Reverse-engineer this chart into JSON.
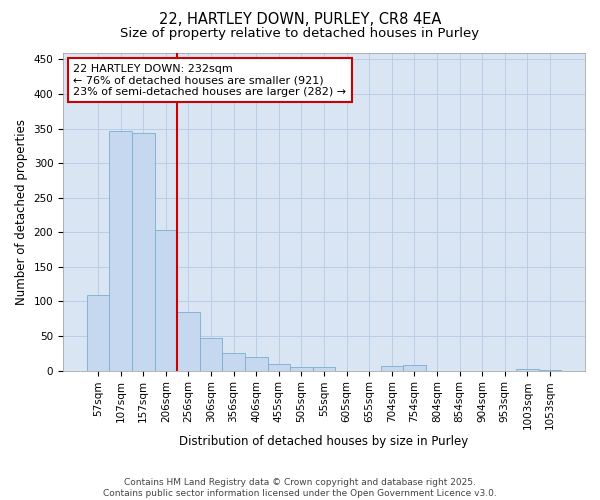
{
  "title1": "22, HARTLEY DOWN, PURLEY, CR8 4EA",
  "title2": "Size of property relative to detached houses in Purley",
  "xlabel": "Distribution of detached houses by size in Purley",
  "ylabel": "Number of detached properties",
  "categories": [
    "57sqm",
    "107sqm",
    "157sqm",
    "206sqm",
    "256sqm",
    "306sqm",
    "356sqm",
    "406sqm",
    "455sqm",
    "505sqm",
    "55sqm",
    "605sqm",
    "655sqm",
    "704sqm",
    "754sqm",
    "804sqm",
    "854sqm",
    "904sqm",
    "953sqm",
    "1003sqm",
    "1053sqm"
  ],
  "values": [
    110,
    347,
    343,
    203,
    85,
    47,
    25,
    20,
    10,
    5,
    5,
    0,
    0,
    7,
    8,
    0,
    0,
    0,
    0,
    2,
    1
  ],
  "bar_color": "#c5d8f0",
  "bar_edge_color": "#7aaed4",
  "grid_color": "#b8cde6",
  "background_color": "#dae5f4",
  "annotation_box_color": "#cc0000",
  "annotation_text": "22 HARTLEY DOWN: 232sqm\n← 76% of detached houses are smaller (921)\n23% of semi-detached houses are larger (282) →",
  "vline_x_idx": 3,
  "ylim": [
    0,
    460
  ],
  "yticks": [
    0,
    50,
    100,
    150,
    200,
    250,
    300,
    350,
    400,
    450
  ],
  "footer": "Contains HM Land Registry data © Crown copyright and database right 2025.\nContains public sector information licensed under the Open Government Licence v3.0.",
  "title1_fontsize": 10.5,
  "title2_fontsize": 9.5,
  "axis_label_fontsize": 8.5,
  "tick_fontsize": 7.5,
  "annotation_fontsize": 8,
  "footer_fontsize": 6.5
}
